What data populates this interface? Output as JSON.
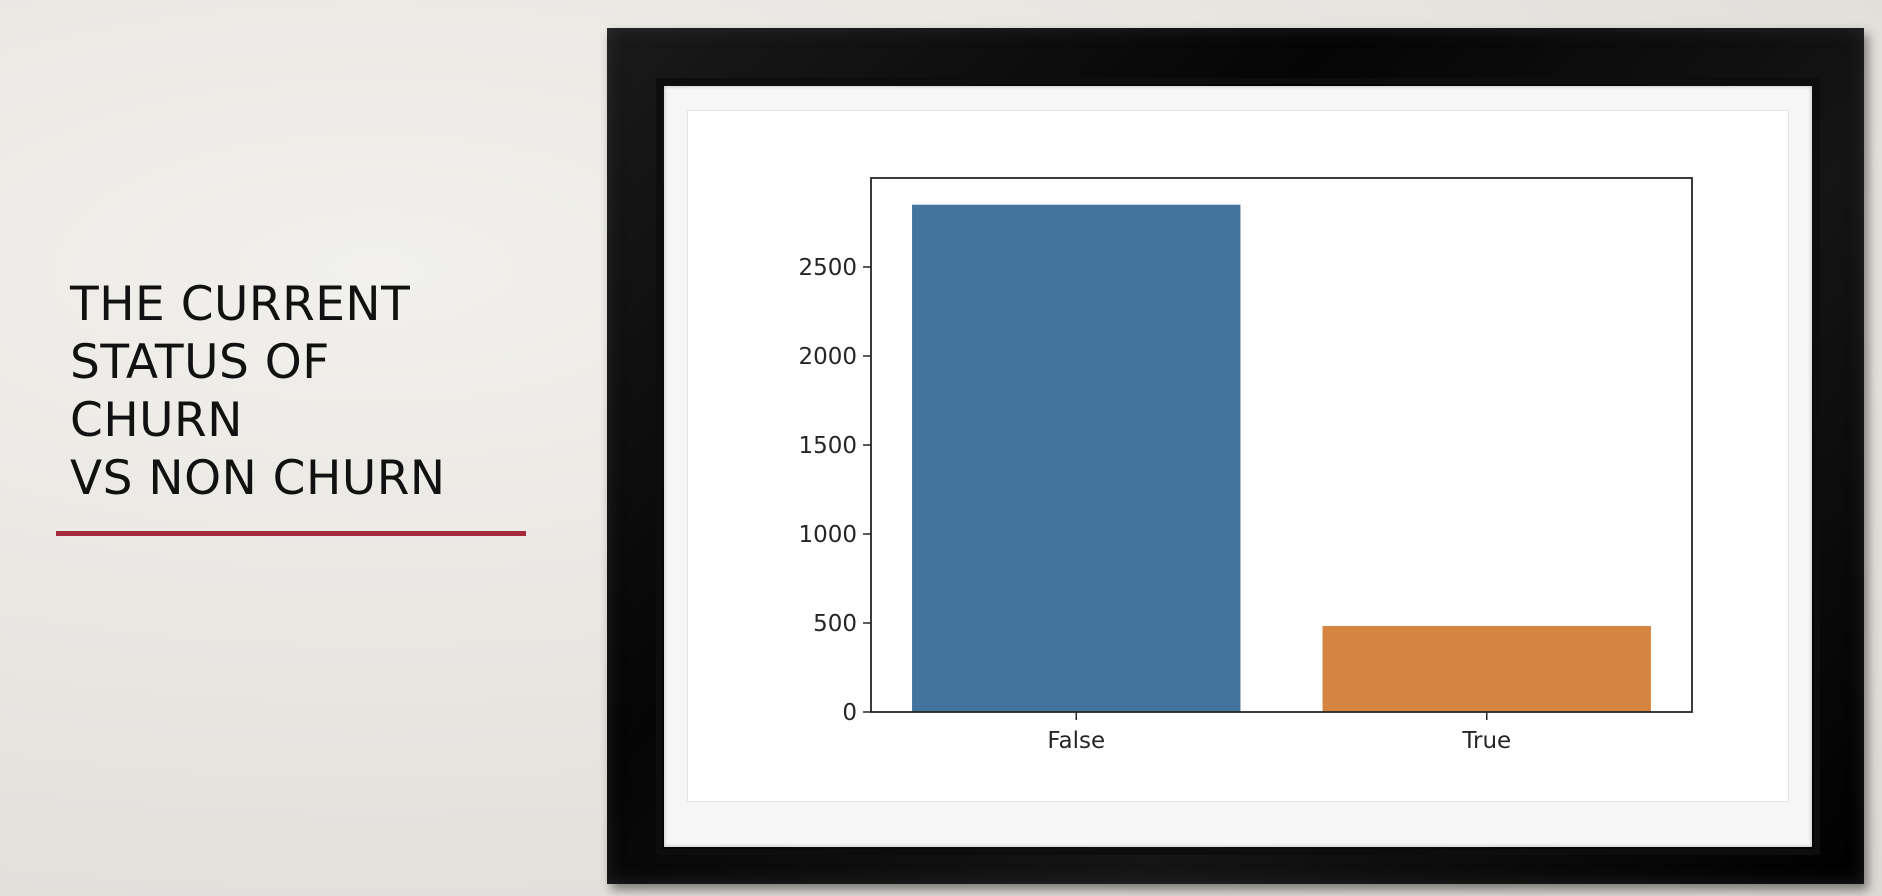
{
  "slide": {
    "title_lines": [
      "THE CURRENT",
      "STATUS OF",
      "CHURN",
      "VS NON CHURN"
    ],
    "accent_color": "#a52a3c"
  },
  "chart_data": {
    "type": "bar",
    "categories": [
      "False",
      "True"
    ],
    "values": [
      2850,
      483
    ],
    "colors": [
      "#4374a0",
      "#d58441"
    ],
    "title": "",
    "xlabel": "",
    "ylabel": "",
    "ylim": [
      0,
      3000
    ],
    "yticks": [
      0,
      500,
      1000,
      1500,
      2000,
      2500
    ],
    "grid": false,
    "legend": "none"
  }
}
